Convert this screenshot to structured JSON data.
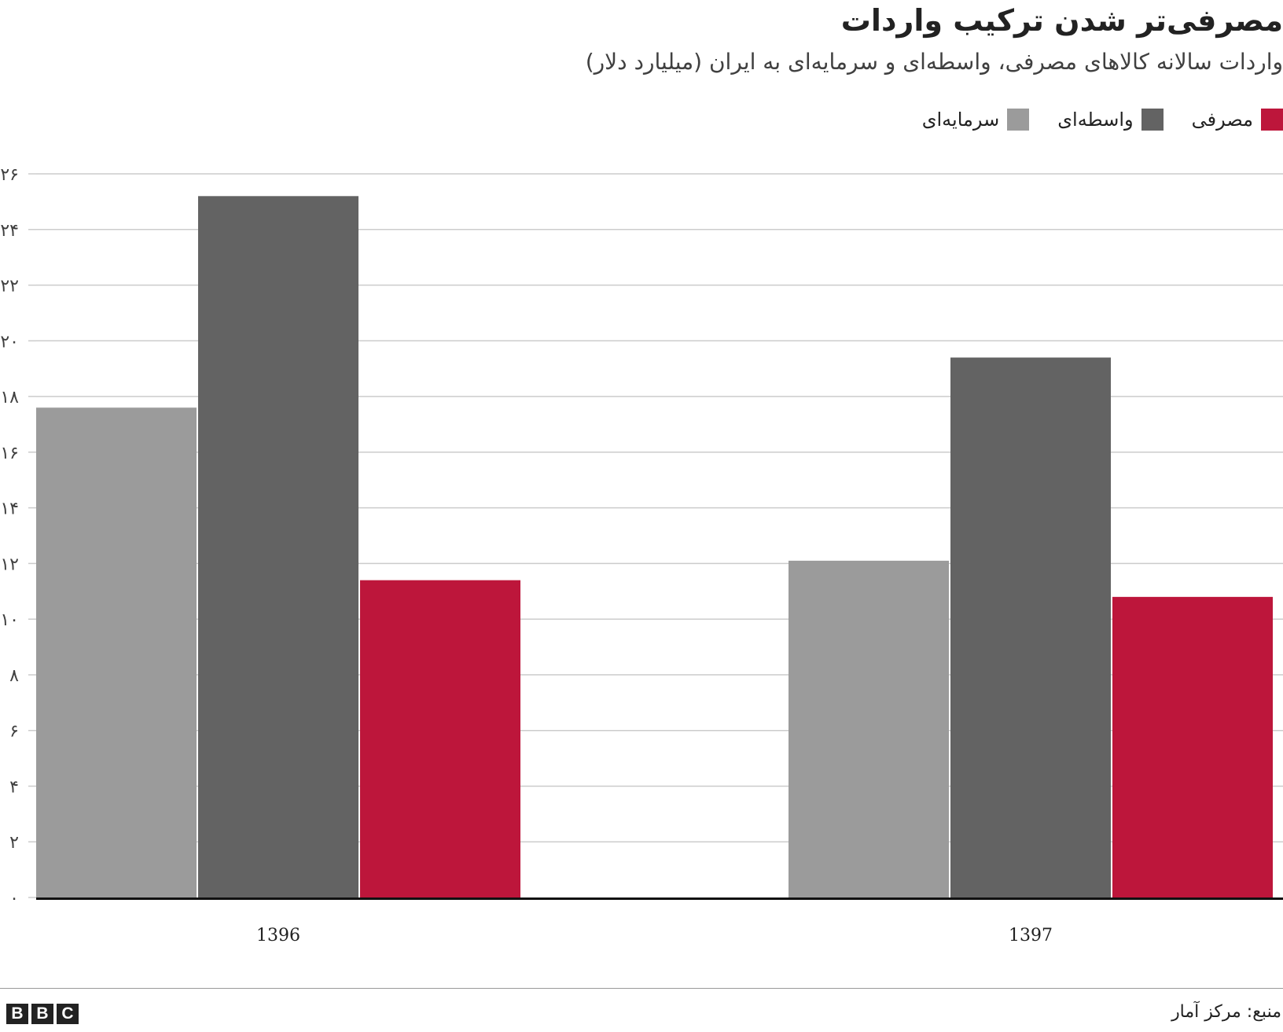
{
  "header": {
    "title": "مصرفی‌تر شدن ترکیب واردات",
    "subtitle": "واردات سالانه کالاهای مصرفی، واسطه‌ای و سرمایه‌ای به ایران (میلیارد دلار)"
  },
  "legend": [
    {
      "label": "مصرفی",
      "color": "#bd163b"
    },
    {
      "label": "واسطه‌ای",
      "color": "#636363"
    },
    {
      "label": "سرمایه‌ای",
      "color": "#9b9b9b"
    }
  ],
  "chart_data": {
    "type": "bar",
    "categories": [
      "1396",
      "1397"
    ],
    "series": [
      {
        "name": "سرمایه‌ای",
        "color": "#9b9b9b",
        "values": [
          17.6,
          12.1
        ]
      },
      {
        "name": "واسطه‌ای",
        "color": "#636363",
        "values": [
          25.2,
          19.4
        ]
      },
      {
        "name": "مصرفی",
        "color": "#bd163b",
        "values": [
          11.4,
          10.8
        ]
      }
    ],
    "ylim": [
      0,
      26
    ],
    "yticks": [
      0,
      2,
      4,
      6,
      8,
      10,
      12,
      14,
      16,
      18,
      20,
      22,
      24,
      26
    ],
    "ytick_labels": [
      "۰",
      "۲",
      "۴",
      "۶",
      "۸",
      "۱۰",
      "۱۲",
      "۱۴",
      "۱۶",
      "۱۸",
      "۲۰",
      "۲۲",
      "۲۴",
      "۲۶"
    ],
    "grid": true,
    "legend_position": "top-right"
  },
  "footer": {
    "source": "منبع: مرکز آمار",
    "logo_letters": [
      "B",
      "B",
      "C"
    ]
  }
}
